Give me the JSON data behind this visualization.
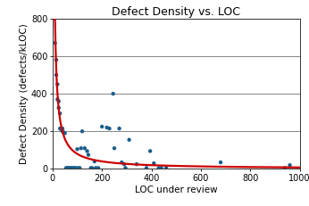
{
  "title": "Defect Density vs. LOC",
  "xlabel": "LOC under review",
  "ylabel": "Defect Density (defects/kLOC)",
  "xlim": [
    0,
    1000
  ],
  "ylim": [
    0,
    800
  ],
  "xticks": [
    0,
    200,
    400,
    600,
    800,
    1000
  ],
  "yticks": [
    0,
    200,
    400,
    600,
    800
  ],
  "scatter_color": "#1a5e8a",
  "curve_color": "#cc0000",
  "curve_k": 8000,
  "scatter_points": [
    [
      5,
      800
    ],
    [
      10,
      670
    ],
    [
      15,
      580
    ],
    [
      15,
      500
    ],
    [
      20,
      450
    ],
    [
      20,
      370
    ],
    [
      25,
      360
    ],
    [
      25,
      325
    ],
    [
      30,
      295
    ],
    [
      30,
      215
    ],
    [
      35,
      210
    ],
    [
      40,
      200
    ],
    [
      40,
      215
    ],
    [
      45,
      195
    ],
    [
      50,
      190
    ],
    [
      55,
      5
    ],
    [
      60,
      5
    ],
    [
      65,
      5
    ],
    [
      70,
      5
    ],
    [
      75,
      5
    ],
    [
      80,
      5
    ],
    [
      85,
      5
    ],
    [
      90,
      5
    ],
    [
      95,
      5
    ],
    [
      100,
      105
    ],
    [
      105,
      5
    ],
    [
      110,
      5
    ],
    [
      115,
      110
    ],
    [
      120,
      200
    ],
    [
      130,
      110
    ],
    [
      140,
      95
    ],
    [
      145,
      75
    ],
    [
      155,
      5
    ],
    [
      160,
      5
    ],
    [
      170,
      40
    ],
    [
      175,
      5
    ],
    [
      185,
      5
    ],
    [
      200,
      225
    ],
    [
      220,
      220
    ],
    [
      230,
      215
    ],
    [
      245,
      400
    ],
    [
      250,
      110
    ],
    [
      270,
      215
    ],
    [
      280,
      35
    ],
    [
      290,
      25
    ],
    [
      295,
      5
    ],
    [
      310,
      155
    ],
    [
      340,
      25
    ],
    [
      380,
      5
    ],
    [
      395,
      95
    ],
    [
      410,
      30
    ],
    [
      430,
      5
    ],
    [
      440,
      5
    ],
    [
      460,
      5
    ],
    [
      680,
      35
    ],
    [
      940,
      5
    ],
    [
      960,
      20
    ]
  ],
  "background_color": "#ffffff",
  "grid_color": "#555555",
  "title_fontsize": 9,
  "label_fontsize": 7.5,
  "tick_fontsize": 7,
  "scatter_size": 10,
  "curve_lw": 1.6
}
